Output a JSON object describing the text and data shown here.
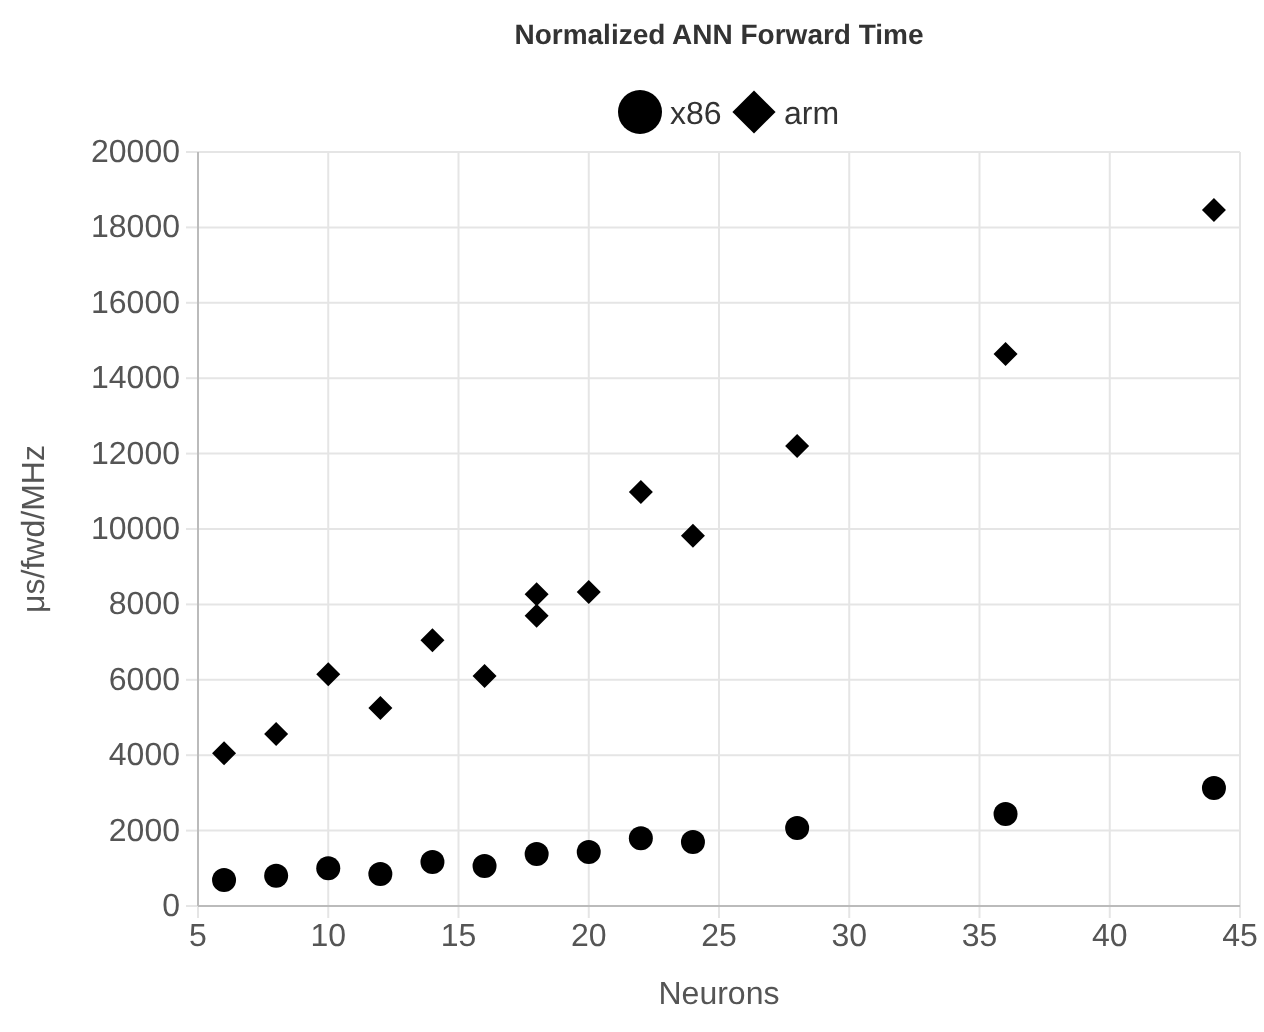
{
  "chart_data": {
    "type": "scatter",
    "title": "Normalized ANN Forward Time",
    "xlabel": "Neurons",
    "ylabel": "μs/fwd/MHz",
    "xlim": [
      5,
      45
    ],
    "xticks": [
      5,
      10,
      15,
      20,
      25,
      30,
      35,
      40,
      45
    ],
    "ylim": [
      0,
      20000
    ],
    "yticks": [
      0,
      2000,
      4000,
      6000,
      8000,
      10000,
      12000,
      14000,
      16000,
      18000,
      20000
    ],
    "grid": true,
    "legend": "top",
    "series": [
      {
        "name": "x86",
        "color": "#000000",
        "marker": "circle",
        "x": [
          6,
          8,
          10,
          12,
          14,
          16,
          18,
          20,
          22,
          24,
          28,
          36,
          44
        ],
        "values": [
          690,
          800,
          1000,
          850,
          1170,
          1060,
          1380,
          1430,
          1800,
          1700,
          2070,
          2440,
          3130
        ]
      },
      {
        "name": "arm",
        "color": "#000000",
        "marker": "diamond",
        "x": [
          6,
          8,
          10,
          12,
          14,
          16,
          18,
          18,
          20,
          22,
          24,
          28,
          36,
          44
        ],
        "values": [
          4050,
          4560,
          6150,
          5250,
          7050,
          6100,
          8270,
          7700,
          8330,
          10980,
          9820,
          12200,
          14640,
          18460
        ]
      }
    ]
  }
}
